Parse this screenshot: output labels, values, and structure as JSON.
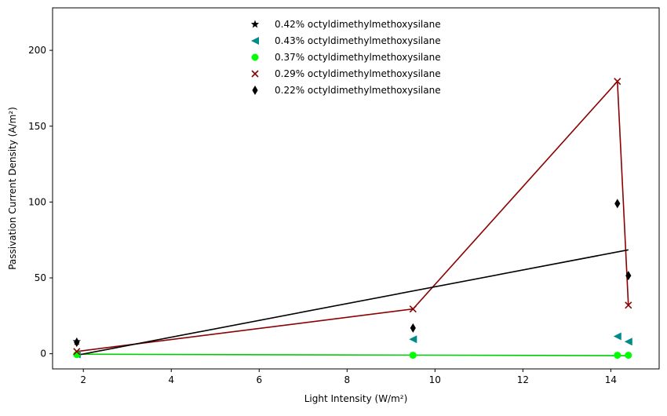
{
  "chart_data": {
    "type": "scatter",
    "title": "",
    "xlabel": "Light Intensity (W/m²)",
    "ylabel": "Passivation Current Density (A/m²)",
    "xlim": [
      1.3,
      15.1
    ],
    "ylim": [
      -10,
      228
    ],
    "xticks": [
      2,
      4,
      6,
      8,
      10,
      12,
      14
    ],
    "yticks": [
      0,
      50,
      100,
      150,
      200
    ],
    "xtick_labels": [
      "2",
      "4",
      "6",
      "8",
      "10",
      "12",
      "14"
    ],
    "ytick_labels": [
      "0",
      "50",
      "100",
      "150",
      "200"
    ],
    "grid": false,
    "legend_placement": "upper-center",
    "series": [
      {
        "name": "0.42% octyldimethylmethoxysilane",
        "marker": "star",
        "color": "#000000",
        "x": [
          1.85
        ],
        "y": [
          8
        ],
        "fit_line": null
      },
      {
        "name": "0.43% octyldimethylmethoxysilane",
        "marker": "triangle-left",
        "color": "#008b8b",
        "x": [
          1.85,
          9.5,
          14.15,
          14.4
        ],
        "y": [
          -0.5,
          9.5,
          11.5,
          8
        ],
        "fit_line": null
      },
      {
        "name": "0.37% octyldimethylmethoxysilane",
        "marker": "circle",
        "color": "#00ff00",
        "x": [
          1.85,
          9.5,
          14.15,
          14.4
        ],
        "y": [
          -0.5,
          -1,
          -1,
          -1
        ],
        "fit_line": {
          "x": [
            1.85,
            14.4
          ],
          "y": [
            -0.3,
            -1.3
          ],
          "color": "#00cc00"
        }
      },
      {
        "name": "0.29% octyldimethylmethoxysilane",
        "marker": "x",
        "color": "#8b0000",
        "x": [
          1.85,
          9.5,
          14.15,
          14.4
        ],
        "y": [
          1.5,
          29.5,
          179.5,
          32
        ],
        "fit_line": {
          "x": [
            1.85,
            9.5,
            14.15,
            14.4
          ],
          "y": [
            1.5,
            29.5,
            179.5,
            32
          ],
          "color": "#8b0000"
        }
      },
      {
        "name": "0.22% octyldimethylmethoxysilane",
        "marker": "thin-diamond",
        "color": "#000000",
        "x": [
          1.85,
          9.5,
          14.15,
          14.4
        ],
        "y": [
          7.5,
          17,
          99,
          51.5
        ],
        "fit_line": {
          "x": [
            1.85,
            14.4
          ],
          "y": [
            -1,
            68.5
          ],
          "color": "#000000"
        }
      }
    ]
  }
}
